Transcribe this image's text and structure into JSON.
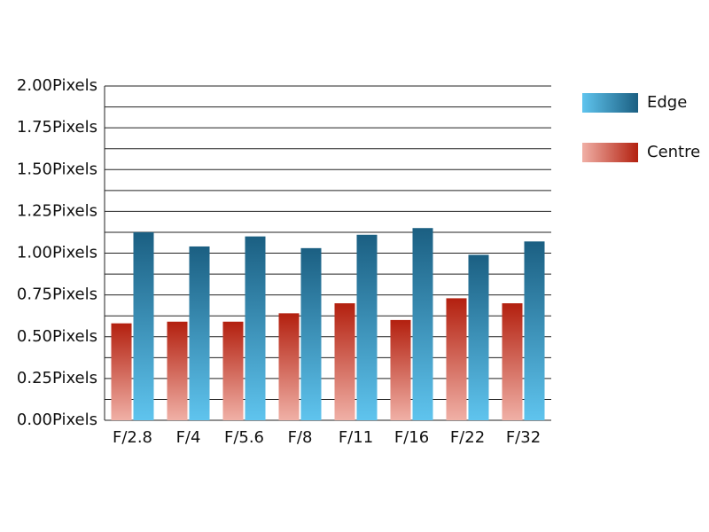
{
  "chart_data": {
    "type": "bar",
    "categories": [
      "F/2.8",
      "F/4",
      "F/5.6",
      "F/8",
      "F/11",
      "F/16",
      "F/22",
      "F/32"
    ],
    "series": [
      {
        "name": "Centre",
        "color": "#b3200f",
        "values": [
          0.58,
          0.59,
          0.59,
          0.64,
          0.7,
          0.6,
          0.73,
          0.7
        ]
      },
      {
        "name": "Edge",
        "color": "#1b5f82",
        "values": [
          1.125,
          1.04,
          1.1,
          1.03,
          1.11,
          1.15,
          0.99,
          1.07
        ]
      }
    ],
    "ylim": [
      0,
      2
    ],
    "yticks": [
      {
        "value": 0,
        "label": "0.00Pixels"
      },
      {
        "value": 0.25,
        "label": "0.25Pixels"
      },
      {
        "value": 0.5,
        "label": "0.50Pixels"
      },
      {
        "value": 0.75,
        "label": "0.75Pixels"
      },
      {
        "value": 1,
        "label": "1.00Pixels"
      },
      {
        "value": 1.25,
        "label": "1.25Pixels"
      },
      {
        "value": 1.5,
        "label": "1.50Pixels"
      },
      {
        "value": 1.75,
        "label": "1.75Pixels"
      },
      {
        "value": 2,
        "label": "2.00Pixels"
      }
    ],
    "minor_yticks": [
      0.125,
      0.375,
      0.625,
      0.875,
      1.125,
      1.375,
      1.625,
      1.875
    ],
    "grid": true,
    "legend": "right"
  }
}
